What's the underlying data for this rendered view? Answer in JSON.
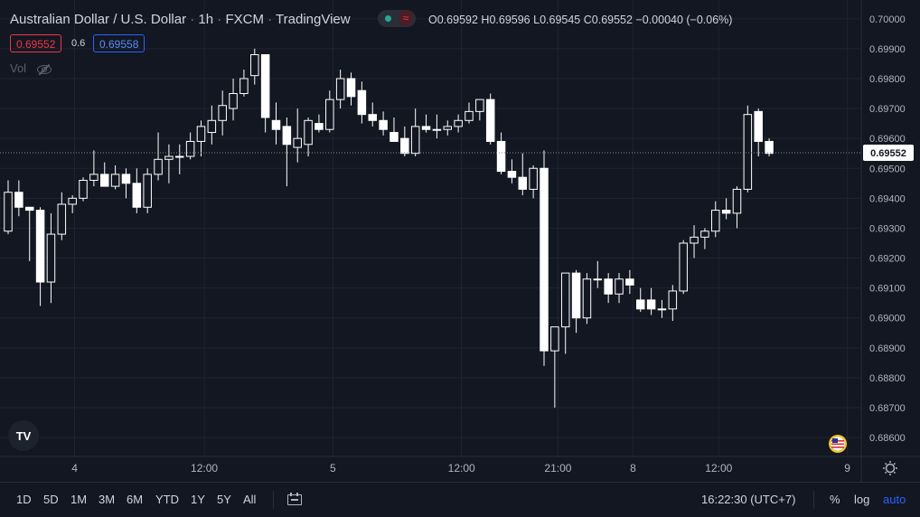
{
  "header": {
    "symbol": "Australian Dollar / U.S. Dollar",
    "interval": "1h",
    "exchange": "FXCM",
    "source": "TradingView",
    "ohlc": {
      "o_label": "O",
      "o": "0.69592",
      "h_label": "H",
      "h": "0.69596",
      "l_label": "L",
      "l": "0.69545",
      "c_label": "C",
      "c": "0.69552",
      "change": "−0.00040 (−0.06%)"
    },
    "sell_price": "0.69552",
    "spread": "0.6",
    "buy_price": "0.69558",
    "vol_label": "Vol"
  },
  "colors": {
    "background": "#131722",
    "grid": "#1f2431",
    "text": "#d1d4dc",
    "sell": "#f23645",
    "buy": "#2962ff",
    "candle": "#ffffff"
  },
  "chart_data": {
    "type": "candlestick",
    "symbol": "AUDUSD",
    "interval": "1h",
    "ylim": [
      0.6855,
      0.7003
    ],
    "yticks": [
      "0.70000",
      "0.69900",
      "0.69800",
      "0.69700",
      "0.69600",
      "0.69500",
      "0.69400",
      "0.69300",
      "0.69200",
      "0.69100",
      "0.69000",
      "0.68900",
      "0.68800",
      "0.68700",
      "0.68600"
    ],
    "yticks_values": [
      0.7,
      0.699,
      0.698,
      0.697,
      0.696,
      0.695,
      0.694,
      0.693,
      0.692,
      0.691,
      0.69,
      0.689,
      0.688,
      0.687,
      0.686
    ],
    "xticks": [
      {
        "label": "4",
        "index": 6.2
      },
      {
        "label": "12:00",
        "index": 18.3
      },
      {
        "label": "5",
        "index": 30.3
      },
      {
        "label": "12:00",
        "index": 42.3
      },
      {
        "label": "21:00",
        "index": 51.3
      },
      {
        "label": "8",
        "index": 58.3
      },
      {
        "label": "12:00",
        "index": 66.3
      },
      {
        "label": "9",
        "index": 78.3
      }
    ],
    "last_price": 0.69552,
    "last_price_label": "0.69552",
    "grid": true,
    "candles": [
      {
        "o": 0.6929,
        "h": 0.6946,
        "l": 0.6928,
        "c": 0.6942
      },
      {
        "o": 0.6942,
        "h": 0.6946,
        "l": 0.6934,
        "c": 0.6937
      },
      {
        "o": 0.6937,
        "h": 0.6937,
        "l": 0.6919,
        "c": 0.6936
      },
      {
        "o": 0.6936,
        "h": 0.6937,
        "l": 0.6904,
        "c": 0.6912
      },
      {
        "o": 0.6912,
        "h": 0.6935,
        "l": 0.6905,
        "c": 0.6928
      },
      {
        "o": 0.6928,
        "h": 0.6942,
        "l": 0.6926,
        "c": 0.6938
      },
      {
        "o": 0.6938,
        "h": 0.6941,
        "l": 0.6935,
        "c": 0.694
      },
      {
        "o": 0.694,
        "h": 0.6947,
        "l": 0.6939,
        "c": 0.6946
      },
      {
        "o": 0.6946,
        "h": 0.6956,
        "l": 0.6944,
        "c": 0.6948
      },
      {
        "o": 0.6948,
        "h": 0.6952,
        "l": 0.6944,
        "c": 0.6944
      },
      {
        "o": 0.6944,
        "h": 0.6951,
        "l": 0.6943,
        "c": 0.6948
      },
      {
        "o": 0.6948,
        "h": 0.695,
        "l": 0.694,
        "c": 0.6945
      },
      {
        "o": 0.6945,
        "h": 0.695,
        "l": 0.6935,
        "c": 0.6937
      },
      {
        "o": 0.6937,
        "h": 0.695,
        "l": 0.6935,
        "c": 0.6948
      },
      {
        "o": 0.6948,
        "h": 0.6962,
        "l": 0.6946,
        "c": 0.6953
      },
      {
        "o": 0.6953,
        "h": 0.6958,
        "l": 0.6945,
        "c": 0.6954
      },
      {
        "o": 0.6954,
        "h": 0.6958,
        "l": 0.6948,
        "c": 0.6954
      },
      {
        "o": 0.6954,
        "h": 0.6962,
        "l": 0.6953,
        "c": 0.6959
      },
      {
        "o": 0.6959,
        "h": 0.6966,
        "l": 0.6954,
        "c": 0.6964
      },
      {
        "o": 0.6962,
        "h": 0.6971,
        "l": 0.6958,
        "c": 0.6966
      },
      {
        "o": 0.6966,
        "h": 0.6976,
        "l": 0.6961,
        "c": 0.6971
      },
      {
        "o": 0.697,
        "h": 0.698,
        "l": 0.6966,
        "c": 0.6975
      },
      {
        "o": 0.6975,
        "h": 0.6983,
        "l": 0.6974,
        "c": 0.698
      },
      {
        "o": 0.6981,
        "h": 0.699,
        "l": 0.6978,
        "c": 0.6988
      },
      {
        "o": 0.6988,
        "h": 0.6988,
        "l": 0.6962,
        "c": 0.6967
      },
      {
        "o": 0.6966,
        "h": 0.6972,
        "l": 0.6958,
        "c": 0.6963
      },
      {
        "o": 0.6964,
        "h": 0.6967,
        "l": 0.6944,
        "c": 0.6958
      },
      {
        "o": 0.6957,
        "h": 0.697,
        "l": 0.6952,
        "c": 0.696
      },
      {
        "o": 0.6958,
        "h": 0.6967,
        "l": 0.6954,
        "c": 0.6966
      },
      {
        "o": 0.6965,
        "h": 0.6968,
        "l": 0.6962,
        "c": 0.6963
      },
      {
        "o": 0.6963,
        "h": 0.6976,
        "l": 0.6962,
        "c": 0.6973
      },
      {
        "o": 0.6973,
        "h": 0.6983,
        "l": 0.697,
        "c": 0.698
      },
      {
        "o": 0.698,
        "h": 0.6982,
        "l": 0.6971,
        "c": 0.6974
      },
      {
        "o": 0.6976,
        "h": 0.6979,
        "l": 0.6965,
        "c": 0.6968
      },
      {
        "o": 0.6968,
        "h": 0.6972,
        "l": 0.6964,
        "c": 0.6966
      },
      {
        "o": 0.6966,
        "h": 0.6969,
        "l": 0.6961,
        "c": 0.6963
      },
      {
        "o": 0.6962,
        "h": 0.6967,
        "l": 0.696,
        "c": 0.6959
      },
      {
        "o": 0.696,
        "h": 0.6964,
        "l": 0.6954,
        "c": 0.6955
      },
      {
        "o": 0.6955,
        "h": 0.697,
        "l": 0.6954,
        "c": 0.6964
      },
      {
        "o": 0.6964,
        "h": 0.6968,
        "l": 0.6962,
        "c": 0.6963
      },
      {
        "o": 0.6963,
        "h": 0.6968,
        "l": 0.696,
        "c": 0.6963
      },
      {
        "o": 0.6963,
        "h": 0.6966,
        "l": 0.6961,
        "c": 0.6964
      },
      {
        "o": 0.6964,
        "h": 0.6968,
        "l": 0.6962,
        "c": 0.6966
      },
      {
        "o": 0.6966,
        "h": 0.6972,
        "l": 0.6965,
        "c": 0.6969
      },
      {
        "o": 0.6969,
        "h": 0.6973,
        "l": 0.6966,
        "c": 0.6973
      },
      {
        "o": 0.6973,
        "h": 0.6975,
        "l": 0.6958,
        "c": 0.6959
      },
      {
        "o": 0.6959,
        "h": 0.6962,
        "l": 0.6948,
        "c": 0.6949
      },
      {
        "o": 0.6949,
        "h": 0.6953,
        "l": 0.6945,
        "c": 0.6947
      },
      {
        "o": 0.6947,
        "h": 0.6955,
        "l": 0.6941,
        "c": 0.6943
      },
      {
        "o": 0.6943,
        "h": 0.6951,
        "l": 0.694,
        "c": 0.695
      },
      {
        "o": 0.695,
        "h": 0.6956,
        "l": 0.6884,
        "c": 0.6889
      },
      {
        "o": 0.6889,
        "h": 0.6897,
        "l": 0.687,
        "c": 0.6897
      },
      {
        "o": 0.6897,
        "h": 0.6915,
        "l": 0.6888,
        "c": 0.6915
      },
      {
        "o": 0.6915,
        "h": 0.6916,
        "l": 0.6895,
        "c": 0.69
      },
      {
        "o": 0.69,
        "h": 0.6915,
        "l": 0.6898,
        "c": 0.6913
      },
      {
        "o": 0.6913,
        "h": 0.6919,
        "l": 0.691,
        "c": 0.6913
      },
      {
        "o": 0.6913,
        "h": 0.6915,
        "l": 0.6905,
        "c": 0.6908
      },
      {
        "o": 0.6908,
        "h": 0.6915,
        "l": 0.6905,
        "c": 0.6913
      },
      {
        "o": 0.6913,
        "h": 0.6916,
        "l": 0.6908,
        "c": 0.6911
      },
      {
        "o": 0.6906,
        "h": 0.691,
        "l": 0.6902,
        "c": 0.6903
      },
      {
        "o": 0.6906,
        "h": 0.691,
        "l": 0.6901,
        "c": 0.6903
      },
      {
        "o": 0.6903,
        "h": 0.6906,
        "l": 0.69,
        "c": 0.6903
      },
      {
        "o": 0.6903,
        "h": 0.6911,
        "l": 0.6899,
        "c": 0.6909
      },
      {
        "o": 0.6909,
        "h": 0.6926,
        "l": 0.6908,
        "c": 0.6925
      },
      {
        "o": 0.6925,
        "h": 0.6931,
        "l": 0.692,
        "c": 0.6927
      },
      {
        "o": 0.6927,
        "h": 0.693,
        "l": 0.6923,
        "c": 0.6929
      },
      {
        "o": 0.6929,
        "h": 0.6939,
        "l": 0.6927,
        "c": 0.6936
      },
      {
        "o": 0.6936,
        "h": 0.694,
        "l": 0.6933,
        "c": 0.6935
      },
      {
        "o": 0.6935,
        "h": 0.6944,
        "l": 0.693,
        "c": 0.6943
      },
      {
        "o": 0.6943,
        "h": 0.6971,
        "l": 0.6942,
        "c": 0.6968
      },
      {
        "o": 0.6969,
        "h": 0.697,
        "l": 0.6954,
        "c": 0.6959
      },
      {
        "o": 0.6959,
        "h": 0.696,
        "l": 0.6954,
        "c": 0.6955
      }
    ]
  },
  "bottom_toolbar": {
    "ranges": [
      "1D",
      "5D",
      "1M",
      "3M",
      "6M",
      "YTD",
      "1Y",
      "5Y",
      "All"
    ],
    "time": "16:22:30 (UTC+7)",
    "percent": "%",
    "log": "log",
    "auto": "auto"
  },
  "logo_text": "TV"
}
